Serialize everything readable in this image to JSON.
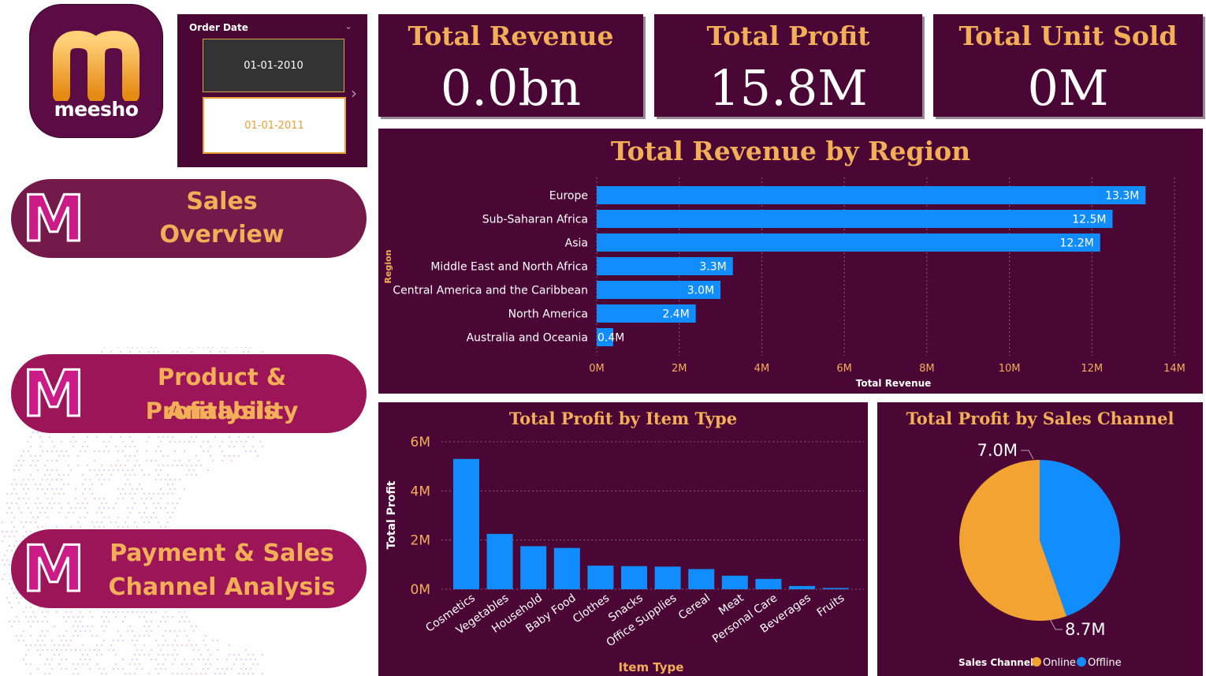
{
  "logo": {
    "text": "meesho"
  },
  "slicer": {
    "title": "Order Date",
    "start_date": "01-01-2010",
    "end_date": "01-01-2011"
  },
  "nav": [
    {
      "line1": "Sales",
      "line2": "Overview",
      "color": "#741a4a"
    },
    {
      "line1": "Product & Profitability",
      "line2": "Analysis",
      "color": "#9c1558"
    },
    {
      "line1": "Payment & Sales",
      "line2": "Channel Analysis",
      "color": "#9c1558"
    }
  ],
  "kpis": {
    "revenue": {
      "title": "Total Revenue",
      "value": "0.0bn"
    },
    "profit": {
      "title": "Total Profit",
      "value": "15.8M"
    },
    "units": {
      "title": "Total Unit Sold",
      "value": "0M"
    }
  },
  "colors": {
    "panel": "#4a0735",
    "accent": "#f3ae58",
    "bar": "#118dff",
    "online": "#f2a331",
    "offline": "#118dff"
  },
  "chart_data": [
    {
      "type": "bar",
      "orientation": "horizontal",
      "title": "Total Revenue by Region",
      "xlabel": "Total Revenue",
      "ylabel": "Region",
      "categories": [
        "Europe",
        "Sub-Saharan Africa",
        "Asia",
        "Middle East and North Africa",
        "Central America and the Caribbean",
        "North America",
        "Australia and Oceania"
      ],
      "values": [
        13.3,
        12.5,
        12.2,
        3.3,
        3.0,
        2.4,
        0.4
      ],
      "data_labels": [
        "13.3M",
        "12.5M",
        "12.2M",
        "3.3M",
        "3.0M",
        "2.4M",
        "0.4M"
      ],
      "xlim": [
        0,
        14
      ],
      "ticks": [
        0,
        2,
        4,
        6,
        8,
        10,
        12,
        14
      ],
      "tick_labels": [
        "0M",
        "2M",
        "4M",
        "6M",
        "8M",
        "10M",
        "12M",
        "14M"
      ],
      "grid": true
    },
    {
      "type": "bar",
      "title": "Total Profit by Item Type",
      "xlabel": "Item Type",
      "ylabel": "Total Profit",
      "categories": [
        "Cosmetics",
        "Vegetables",
        "Household",
        "Baby Food",
        "Clothes",
        "Snacks",
        "Office Supplies",
        "Cereal",
        "Meat",
        "Personal Care",
        "Beverages",
        "Fruits"
      ],
      "values": [
        5.3,
        2.25,
        1.75,
        1.68,
        0.96,
        0.94,
        0.92,
        0.82,
        0.55,
        0.42,
        0.13,
        0.05
      ],
      "ylim": [
        0,
        6
      ],
      "ticks": [
        0,
        2,
        4,
        6
      ],
      "tick_labels": [
        "0M",
        "2M",
        "4M",
        "6M"
      ],
      "grid": true
    },
    {
      "type": "pie",
      "title": "Total Profit by Sales Channel",
      "legend_title": "Sales Channel",
      "legend_position": "bottom",
      "slices": [
        {
          "name": "Online",
          "value": 8.7,
          "label": "8.7M"
        },
        {
          "name": "Offline",
          "value": 7.0,
          "label": "7.0M"
        }
      ]
    }
  ]
}
